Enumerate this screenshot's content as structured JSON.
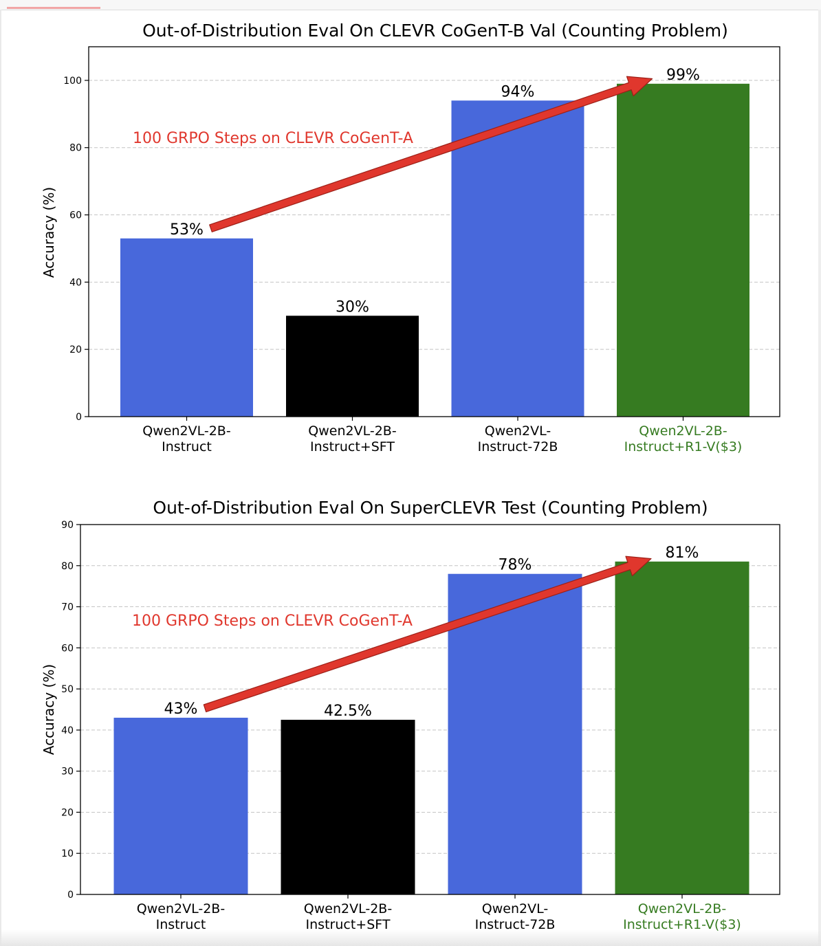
{
  "chart_data": [
    {
      "type": "bar",
      "title": "Out-of-Distribution Eval On CLEVR CoGenT-B Val (Counting Problem)",
      "xlabel": "",
      "ylabel": "Accuracy (%)",
      "ylim": [
        0,
        110
      ],
      "yticks": [
        0,
        20,
        40,
        60,
        80,
        100
      ],
      "grid": "y-dashed",
      "categories": [
        [
          "Qwen2VL-2B-",
          "Instruct"
        ],
        [
          "Qwen2VL-2B-",
          "Instruct+SFT"
        ],
        [
          "Qwen2VL-",
          "Instruct-72B"
        ],
        [
          "Qwen2VL-2B-",
          "Instruct+R1-V($3)"
        ]
      ],
      "values": [
        53,
        30,
        94,
        99
      ],
      "value_labels": [
        "53%",
        "30%",
        "94%",
        "99%"
      ],
      "bar_colors": [
        "#4868db",
        "#000000",
        "#4868db",
        "#367b21"
      ],
      "category_label_colors": [
        "#000000",
        "#000000",
        "#000000",
        "#367b21"
      ],
      "annotation": {
        "text": "100 GRPO Steps on CLEVR CoGenT-A",
        "color": "#e0372d",
        "arrow_from": {
          "category": 0,
          "value": 56
        },
        "arrow_to": {
          "category": 3,
          "value": 100.5
        }
      }
    },
    {
      "type": "bar",
      "title": "Out-of-Distribution Eval On SuperCLEVR Test (Counting Problem)",
      "xlabel": "",
      "ylabel": "Accuracy (%)",
      "ylim": [
        0,
        90
      ],
      "yticks": [
        0,
        10,
        20,
        30,
        40,
        50,
        60,
        70,
        80,
        90
      ],
      "grid": "y-dashed",
      "categories": [
        [
          "Qwen2VL-2B-",
          "Instruct"
        ],
        [
          "Qwen2VL-2B-",
          "Instruct+SFT"
        ],
        [
          "Qwen2VL-",
          "Instruct-72B"
        ],
        [
          "Qwen2VL-2B-",
          "Instruct+R1-V($3)"
        ]
      ],
      "values": [
        43,
        42.5,
        78,
        81
      ],
      "value_labels": [
        "43%",
        "42.5%",
        "78%",
        "81%"
      ],
      "bar_colors": [
        "#4868db",
        "#000000",
        "#4868db",
        "#367b21"
      ],
      "category_label_colors": [
        "#000000",
        "#000000",
        "#000000",
        "#367b21"
      ],
      "annotation": {
        "text": "100 GRPO Steps on CLEVR CoGenT-A",
        "color": "#e0372d",
        "arrow_from": {
          "category": 0,
          "value": 45.3
        },
        "arrow_to": {
          "category": 3,
          "value": 81.7
        }
      }
    }
  ]
}
